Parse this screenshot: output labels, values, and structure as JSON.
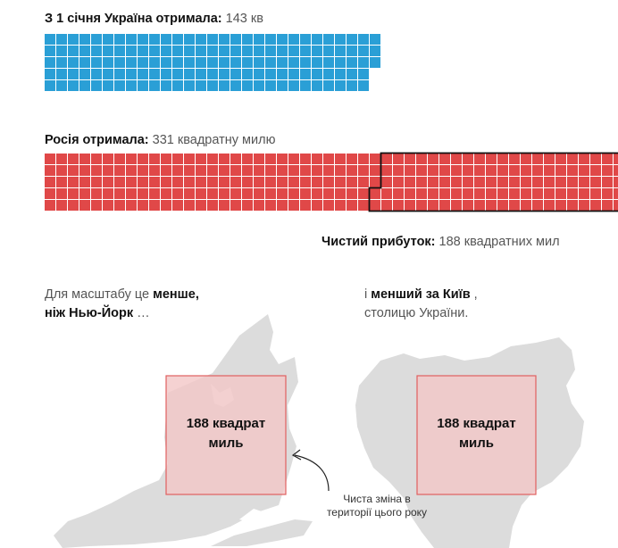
{
  "ukraine": {
    "label": "З 1 січня Україна отримала:",
    "value_text": "143 кв"
  },
  "russia": {
    "label": "Росія отримала:",
    "value_text": "331 квадратну милю"
  },
  "net": {
    "label": "Чистий прибуток:",
    "value_text": "188 квадратних мил"
  },
  "nyc": {
    "line1_plain": "Для масштабу це",
    "line1_bold": "менше,",
    "line2_bold": "ніж Нью-Йорк",
    "line2_plain": "…",
    "box_line1": "188 квадрат",
    "box_line2": "миль"
  },
  "kyiv": {
    "line1_plain_a": "і",
    "line1_bold": "менший за Київ",
    "line1_plain_b": ",",
    "line2_plain": "столицю України.",
    "box_line1": "188 квадрат",
    "box_line2": "миль"
  },
  "annotation": {
    "line1": "Чиста зміна в",
    "line2": "території цього року"
  },
  "colors": {
    "ukraine": "#2a9fd6",
    "russia": "#e04848",
    "map_land": "#dcdcdc",
    "box_fill": "#f2c7c7",
    "box_stroke": "#e06060"
  },
  "chart_data": {
    "type": "waffle",
    "unit": "square miles",
    "series": [
      {
        "name": "Україна",
        "value": 143
      },
      {
        "name": "Росія",
        "value": 331
      }
    ],
    "net_gain": 188
  }
}
